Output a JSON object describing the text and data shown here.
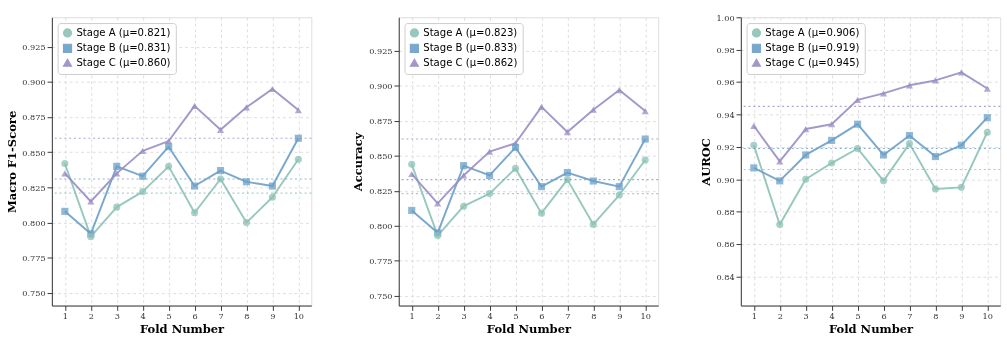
{
  "chart_data": [
    {
      "type": "line",
      "xlabel": "Fold Number",
      "ylabel": "Macro F1-Score",
      "x": [
        1,
        2,
        3,
        4,
        5,
        6,
        7,
        8,
        9,
        10
      ],
      "xlim": [
        0.5,
        10.5
      ],
      "xticks": [
        1,
        2,
        3,
        4,
        5,
        6,
        7,
        8,
        9,
        10
      ],
      "ylim": [
        0.741,
        0.946
      ],
      "yticks": [
        {
          "value": 0.75,
          "label": "0.750"
        },
        0.775,
        {
          "value": 0.8,
          "label": "0.800"
        },
        0.825,
        {
          "value": 0.85,
          "label": "0.850"
        },
        0.875,
        {
          "value": 0.9,
          "label": "0.900"
        },
        0.925
      ],
      "grid": true,
      "legend": "top left",
      "line_style": "solid",
      "series": [
        {
          "name": "Stage A (μ=0.821)",
          "color": "#8cc2b6",
          "marker": "circle",
          "values": [
            0.842,
            0.79,
            0.811,
            0.822,
            0.84,
            0.807,
            0.831,
            0.8,
            0.818,
            0.845
          ]
        },
        {
          "name": "Stage B (μ=0.831)",
          "color": "#6a9fc8",
          "marker": "square",
          "values": [
            0.808,
            0.792,
            0.84,
            0.833,
            0.854,
            0.826,
            0.837,
            0.829,
            0.826,
            0.86
          ]
        },
        {
          "name": "Stage C (μ=0.860)",
          "color": "#9a8cc4",
          "marker": "triangle",
          "values": [
            0.835,
            0.815,
            0.835,
            0.851,
            0.858,
            0.883,
            0.866,
            0.882,
            0.895,
            0.88
          ]
        }
      ],
      "ref_lines": [
        {
          "axis": "y",
          "value": 0.821,
          "color": "#8cc2b6",
          "line_style": "dotted"
        },
        {
          "axis": "y",
          "value": 0.831,
          "color": "#6a9fc8",
          "line_style": "dotted"
        },
        {
          "axis": "y",
          "value": 0.86,
          "color": "#9a8cc4",
          "line_style": "dotted"
        }
      ]
    },
    {
      "type": "line",
      "xlabel": "Fold Number",
      "ylabel": "Accuracy",
      "x": [
        1,
        2,
        3,
        4,
        5,
        6,
        7,
        8,
        9,
        10
      ],
      "xlim": [
        0.5,
        10.5
      ],
      "xticks": [
        1,
        2,
        3,
        4,
        5,
        6,
        7,
        8,
        9,
        10
      ],
      "ylim": [
        0.743,
        0.949
      ],
      "yticks": [
        {
          "value": 0.75,
          "label": "0.750"
        },
        0.775,
        {
          "value": 0.8,
          "label": "0.800"
        },
        0.825,
        {
          "value": 0.85,
          "label": "0.850"
        },
        0.875,
        {
          "value": 0.9,
          "label": "0.900"
        },
        0.925
      ],
      "grid": true,
      "legend": "top left",
      "line_style": "solid",
      "series": [
        {
          "name": "Stage A (μ=0.823)",
          "color": "#8cc2b6",
          "marker": "circle",
          "values": [
            0.844,
            0.793,
            0.814,
            0.823,
            0.841,
            0.809,
            0.833,
            0.801,
            0.822,
            0.847
          ]
        },
        {
          "name": "Stage B (μ=0.833)",
          "color": "#6a9fc8",
          "marker": "square",
          "values": [
            0.811,
            0.795,
            0.843,
            0.836,
            0.856,
            0.828,
            0.838,
            0.832,
            0.828,
            0.862
          ]
        },
        {
          "name": "Stage C (μ=0.862)",
          "color": "#9a8cc4",
          "marker": "triangle",
          "values": [
            0.837,
            0.816,
            0.836,
            0.853,
            0.859,
            0.885,
            0.867,
            0.883,
            0.897,
            0.882
          ]
        }
      ],
      "ref_lines": [
        {
          "axis": "y",
          "value": 0.823,
          "color": "#8cc2b6",
          "line_style": "dotted"
        },
        {
          "axis": "y",
          "value": 0.833,
          "color": "#6a9fc8",
          "line_style": "dotted"
        },
        {
          "axis": "y",
          "value": 0.862,
          "color": "#9a8cc4",
          "line_style": "dotted"
        }
      ]
    },
    {
      "type": "line",
      "xlabel": "Fold Number",
      "ylabel": "AUROC",
      "x": [
        1,
        2,
        3,
        4,
        5,
        6,
        7,
        8,
        9,
        10
      ],
      "xlim": [
        0.5,
        10.5
      ],
      "xticks": [
        1,
        2,
        3,
        4,
        5,
        6,
        7,
        8,
        9,
        10
      ],
      "ylim": [
        0.822,
        1.0
      ],
      "yticks": [
        0.84,
        0.86,
        0.88,
        {
          "value": 0.9,
          "label": "0.90"
        },
        0.92,
        0.94,
        0.96,
        0.98,
        {
          "value": 1.0,
          "label": "1.00"
        }
      ],
      "grid": true,
      "legend": "top left",
      "line_style": "solid",
      "series": [
        {
          "name": "Stage A (μ=0.906)",
          "color": "#8cc2b6",
          "marker": "circle",
          "values": [
            0.921,
            0.872,
            0.9,
            0.91,
            0.919,
            0.899,
            0.922,
            0.894,
            0.895,
            0.929
          ]
        },
        {
          "name": "Stage B (μ=0.919)",
          "color": "#6a9fc8",
          "marker": "square",
          "values": [
            0.907,
            0.899,
            0.915,
            0.924,
            0.934,
            0.915,
            0.927,
            0.914,
            0.921,
            0.938
          ]
        },
        {
          "name": "Stage C (μ=0.945)",
          "color": "#9a8cc4",
          "marker": "triangle",
          "values": [
            0.933,
            0.911,
            0.931,
            0.934,
            0.949,
            0.953,
            0.958,
            0.961,
            0.966,
            0.956
          ]
        }
      ],
      "ref_lines": [
        {
          "axis": "y",
          "value": 0.906,
          "color": "#8cc2b6",
          "line_style": "dotted"
        },
        {
          "axis": "y",
          "value": 0.919,
          "color": "#6a9fc8",
          "line_style": "dotted"
        },
        {
          "axis": "y",
          "value": 0.945,
          "color": "#9a8cc4",
          "line_style": "dotted"
        }
      ]
    }
  ]
}
